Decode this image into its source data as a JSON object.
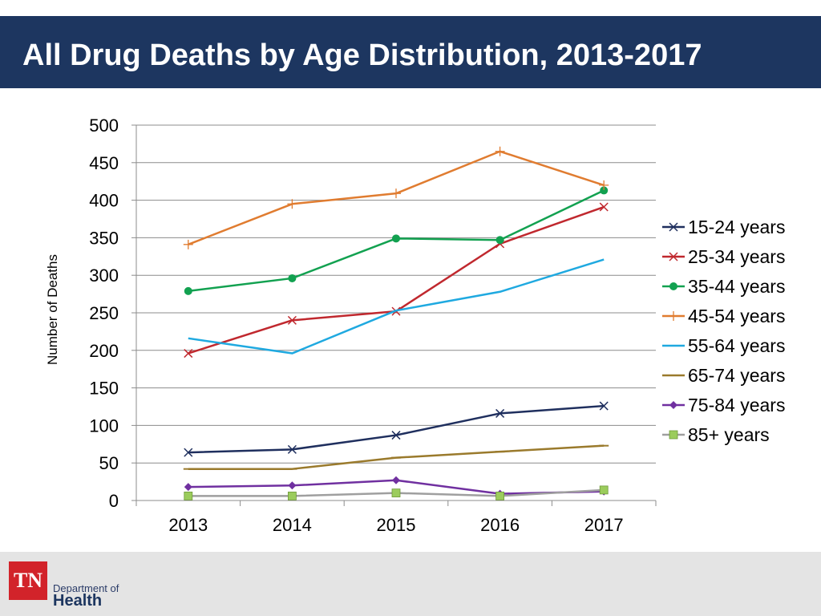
{
  "slide": {
    "title": "All Drug Deaths by Age Distribution, 2013-2017"
  },
  "footer": {
    "logo_abbrev": "TN",
    "logo_line1": "Department of",
    "logo_line2": "Health"
  },
  "chart_data": {
    "type": "line",
    "title": "",
    "xlabel": "",
    "ylabel": "Number of Deaths",
    "ylim": [
      0,
      500
    ],
    "yticks": [
      0,
      50,
      100,
      150,
      200,
      250,
      300,
      350,
      400,
      450,
      500
    ],
    "grid": true,
    "legend": "right",
    "categories": [
      "2013",
      "2014",
      "2015",
      "2016",
      "2017"
    ],
    "series": [
      {
        "name": "15-24 years",
        "values": [
          64,
          68,
          87,
          116,
          126
        ],
        "color": "#1f2f5e",
        "marker": "x"
      },
      {
        "name": "25-34 years",
        "values": [
          196,
          240,
          252,
          342,
          391
        ],
        "color": "#c0282e",
        "marker": "x"
      },
      {
        "name": "35-44 years",
        "values": [
          279,
          296,
          349,
          347,
          413
        ],
        "color": "#12a150",
        "marker": "circle"
      },
      {
        "name": "45-54 years",
        "values": [
          341,
          395,
          409,
          465,
          420
        ],
        "color": "#e07c30",
        "marker": "plus"
      },
      {
        "name": "55-64 years",
        "values": [
          216,
          196,
          253,
          278,
          321
        ],
        "color": "#1fa9e0",
        "marker": "none"
      },
      {
        "name": "65-74 years",
        "values": [
          42,
          42,
          57,
          65,
          73
        ],
        "color": "#9a7a2c",
        "marker": "dash"
      },
      {
        "name": "75-84 years",
        "values": [
          18,
          20,
          27,
          9,
          12
        ],
        "color": "#7030a0",
        "marker": "diamond"
      },
      {
        "name": "85+ years",
        "values": [
          6,
          6,
          10,
          6,
          14
        ],
        "color": "#9f9f9f",
        "marker": "square",
        "marker_color": "#9bcc5c"
      }
    ]
  }
}
